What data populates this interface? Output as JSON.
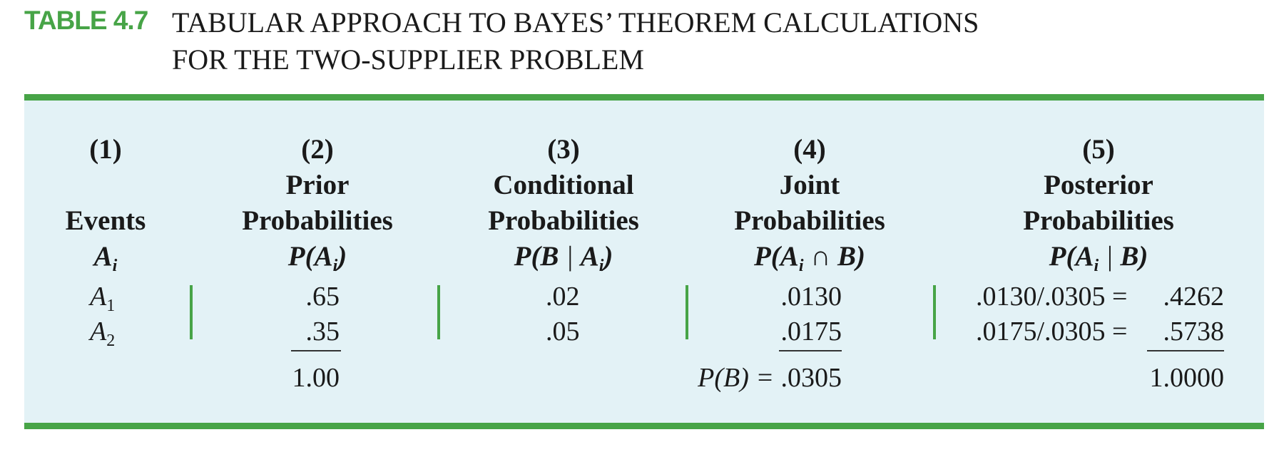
{
  "header": {
    "table_number": "TABLE 4.7",
    "title_line_1": "TABULAR APPROACH TO BAYES’ THEOREM CALCULATIONS",
    "title_line_2": "FOR THE TWO-SUPPLIER PROBLEM"
  },
  "columns": [
    {
      "num": "(1)",
      "line1": "",
      "line2": "Events",
      "symbol": "A",
      "sub": "i"
    },
    {
      "num": "(2)",
      "line1": "Prior",
      "line2": "Probabilities",
      "symbol_pre": "P(",
      "symbol": "A",
      "sub": "i",
      "symbol_post": ")"
    },
    {
      "num": "(3)",
      "line1": "Conditional",
      "line2": "Probabilities",
      "symbol_pre": "P(B",
      "bar": " | ",
      "symbol": "A",
      "sub": "i",
      "symbol_post": ")"
    },
    {
      "num": "(4)",
      "line1": "Joint",
      "line2": "Probabilities",
      "symbol_pre": "P(",
      "symbol": "A",
      "sub": "i",
      "symbol_post": " ∩ B)"
    },
    {
      "num": "(5)",
      "line1": "Posterior",
      "line2": "Probabilities",
      "symbol_pre": "P(",
      "symbol": "A",
      "sub": "i",
      "bar": " | ",
      "symbol_post": "B)"
    }
  ],
  "rows": [
    {
      "event": "A",
      "event_sub": "1",
      "prior": ".65",
      "conditional": ".02",
      "joint": ".0130",
      "posterior_expr": ".0130/.0305 =",
      "posterior": ".4262"
    },
    {
      "event": "A",
      "event_sub": "2",
      "prior": ".35",
      "conditional": ".05",
      "joint": ".0175",
      "posterior_expr": ".0175/.0305 =",
      "posterior": ".5738"
    }
  ],
  "totals": {
    "prior": "1.00",
    "joint_label": "P(B) = ",
    "joint": ".0305",
    "posterior": "1.0000"
  }
}
